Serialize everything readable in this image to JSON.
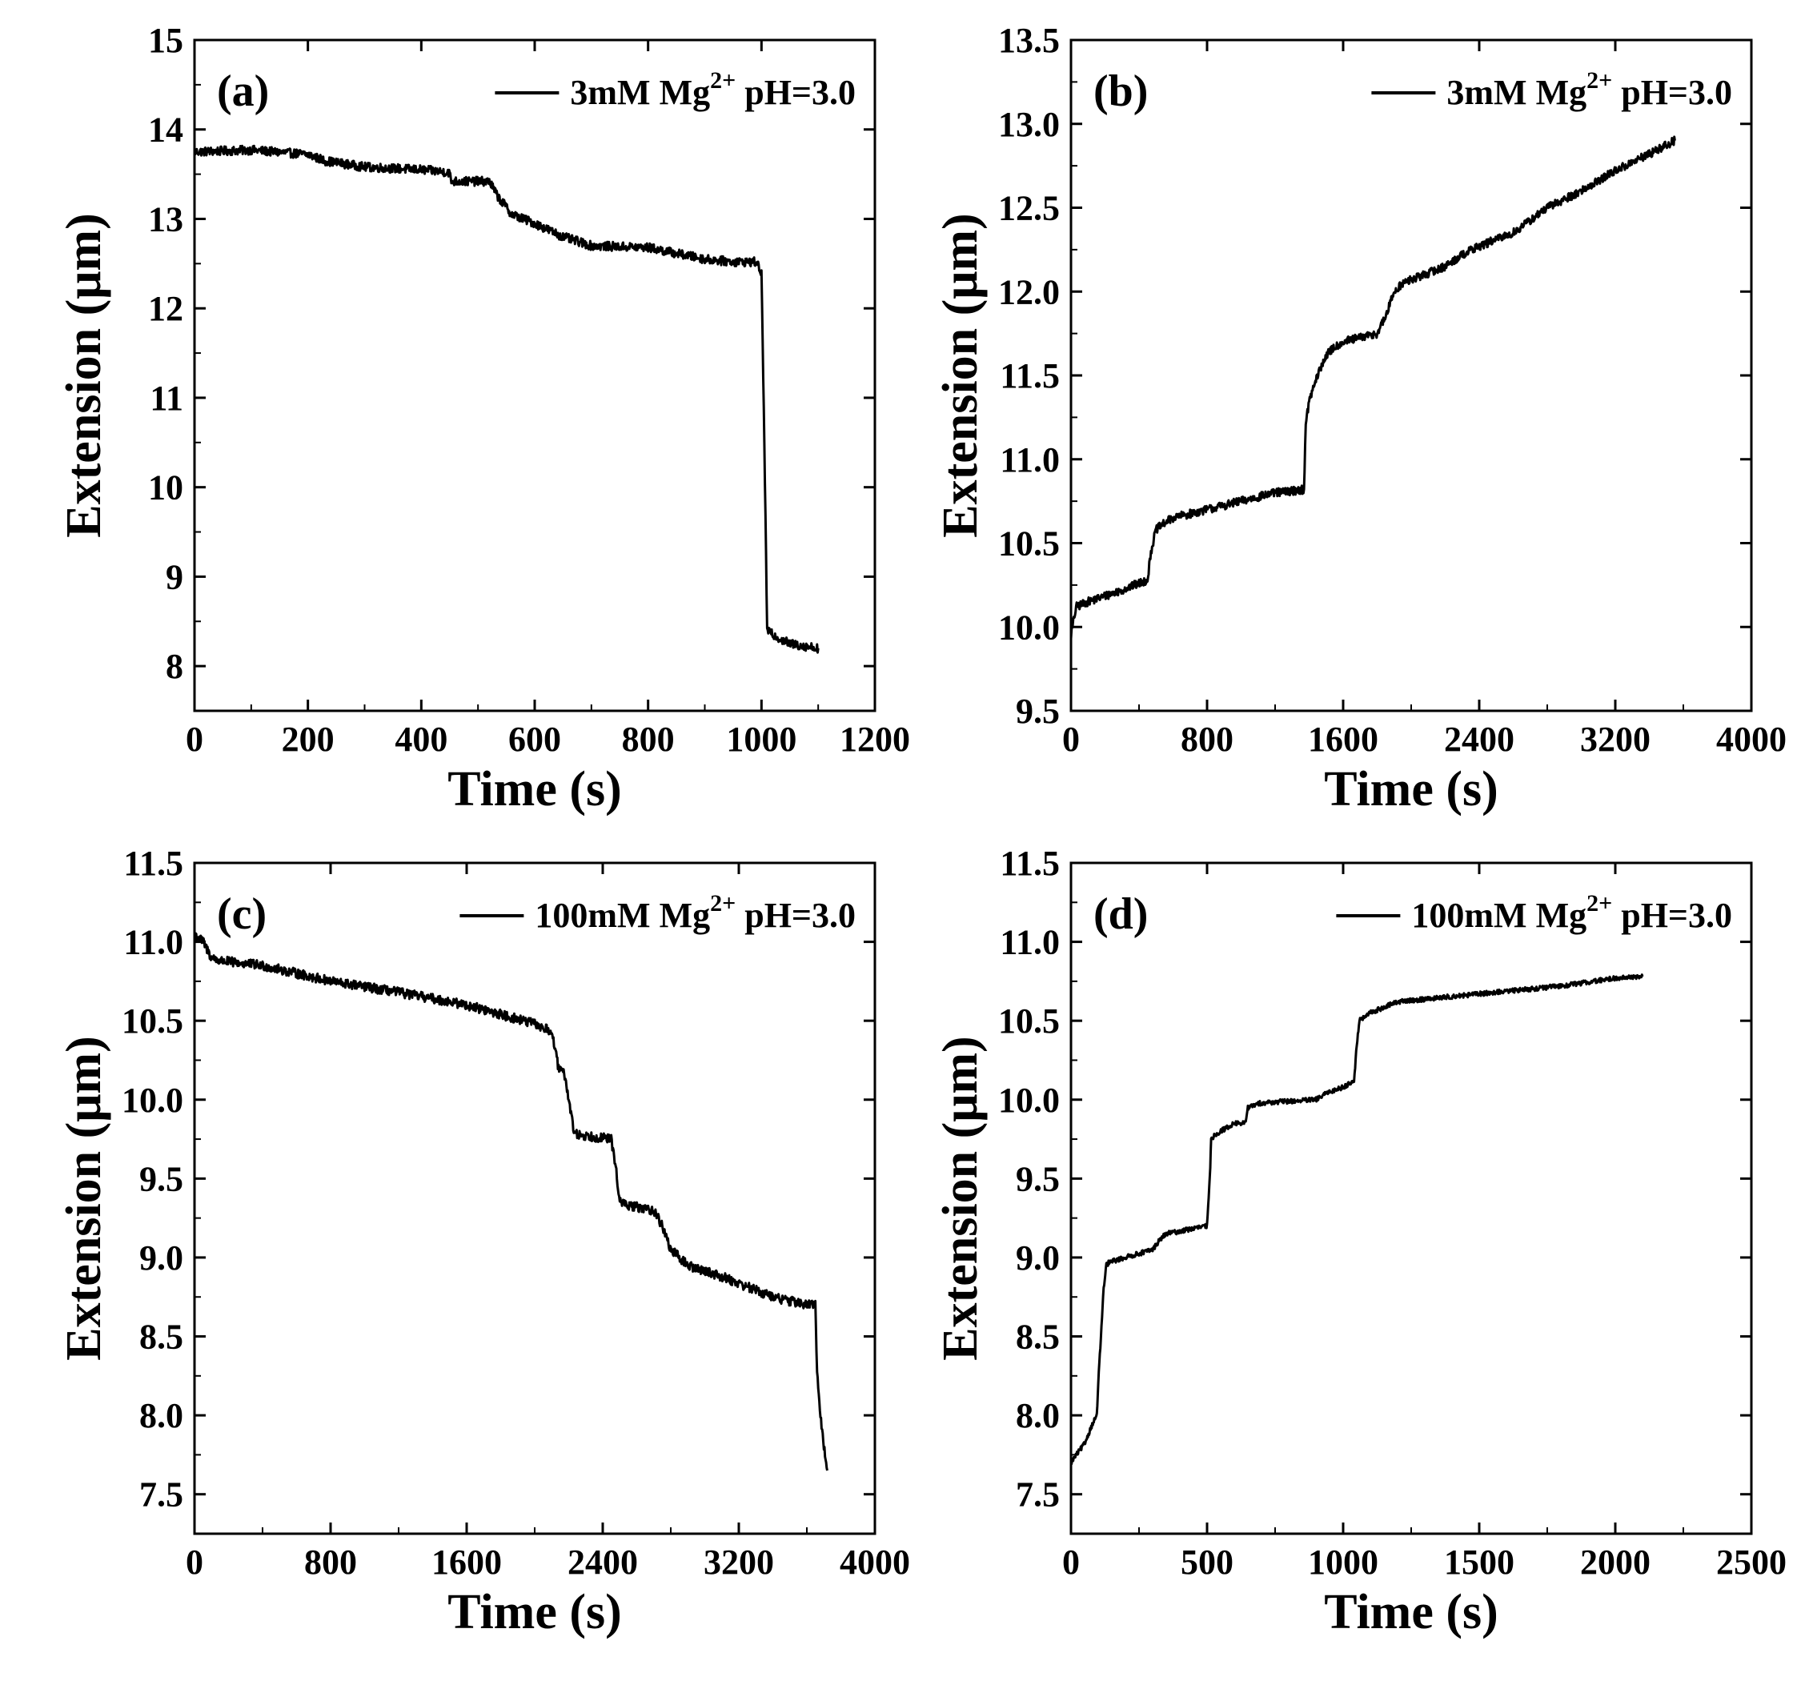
{
  "figure": {
    "line_color": "#000000",
    "background": "#ffffff"
  },
  "chart_data": [
    {
      "panel": "(a)",
      "type": "line",
      "legend": {
        "pre": "3mM Mg",
        "sup": "2+",
        "post": " pH=3.0",
        "placement": "top-right"
      },
      "xlabel": "Time (s)",
      "ylabel": "Extension (μm)",
      "xlim": [
        0,
        1200
      ],
      "ylim": [
        7.5,
        15
      ],
      "xticks": [
        0,
        200,
        400,
        600,
        800,
        1000,
        1200
      ],
      "yticks": [
        8,
        9,
        10,
        11,
        12,
        13,
        14,
        15
      ],
      "ytick_decimals": 0,
      "noise": 0.05,
      "series": [
        {
          "name": "3mM Mg2+ pH=3.0",
          "x": [
            0,
            100,
            200,
            230,
            300,
            400,
            450,
            452,
            520,
            535,
            560,
            600,
            650,
            700,
            800,
            900,
            950,
            990,
            1000,
            1005,
            1010,
            1020,
            1050,
            1100
          ],
          "y": [
            13.75,
            13.77,
            13.72,
            13.65,
            13.58,
            13.55,
            13.52,
            13.42,
            13.42,
            13.25,
            13.05,
            12.95,
            12.8,
            12.7,
            12.68,
            12.55,
            12.52,
            12.52,
            12.4,
            10.5,
            8.4,
            8.35,
            8.25,
            8.2
          ]
        }
      ]
    },
    {
      "panel": "(b)",
      "type": "line",
      "legend": {
        "pre": "3mM Mg",
        "sup": "2+",
        "post": " pH=3.0",
        "placement": "top-right"
      },
      "xlabel": "Time (s)",
      "ylabel": "Extension (μm)",
      "xlim": [
        0,
        4000
      ],
      "ylim": [
        9.5,
        13.5
      ],
      "xticks": [
        0,
        800,
        1600,
        2400,
        3200,
        4000
      ],
      "yticks": [
        9.5,
        10.0,
        10.5,
        11.0,
        11.5,
        12.0,
        12.5,
        13.0,
        13.5
      ],
      "ytick_decimals": 1,
      "noise": 0.025,
      "series": [
        {
          "name": "3mM Mg2+ pH=3.0",
          "x": [
            0,
            30,
            100,
            300,
            450,
            470,
            500,
            550,
            600,
            800,
            1000,
            1200,
            1370,
            1380,
            1400,
            1450,
            1500,
            1550,
            1600,
            1800,
            1850,
            1900,
            1950,
            2000,
            2200,
            2300,
            2400,
            2600,
            2800,
            3000,
            3200,
            3400,
            3550
          ],
          "y": [
            9.95,
            10.12,
            10.15,
            10.22,
            10.28,
            10.45,
            10.58,
            10.62,
            10.65,
            10.7,
            10.75,
            10.8,
            10.82,
            11.2,
            11.35,
            11.5,
            11.62,
            11.67,
            11.7,
            11.75,
            11.85,
            12.0,
            12.05,
            12.07,
            12.15,
            12.22,
            12.27,
            12.35,
            12.5,
            12.6,
            12.72,
            12.82,
            12.9
          ]
        }
      ]
    },
    {
      "panel": "(c)",
      "type": "line",
      "legend": {
        "pre": "100mM Mg",
        "sup": "2+",
        "post": " pH=3.0",
        "placement": "top-right"
      },
      "xlabel": "Time (s)",
      "ylabel": "Extension (μm)",
      "xlim": [
        0,
        4000
      ],
      "ylim": [
        7.25,
        11.5
      ],
      "xticks": [
        0,
        800,
        1600,
        2400,
        3200,
        4000
      ],
      "yticks": [
        7.5,
        8.0,
        8.5,
        9.0,
        9.5,
        10.0,
        10.5,
        11.0,
        11.5
      ],
      "ytick_decimals": 1,
      "noise": 0.03,
      "series": [
        {
          "name": "100mM Mg2+ pH=3.0",
          "x": [
            0,
            50,
            100,
            150,
            400,
            800,
            1200,
            1600,
            2000,
            2100,
            2140,
            2180,
            2200,
            2230,
            2250,
            2450,
            2480,
            2500,
            2550,
            2700,
            2750,
            2800,
            2850,
            2900,
            3100,
            3400,
            3600,
            3650,
            3660,
            3680,
            3700,
            3720
          ],
          "y": [
            11.05,
            11.0,
            10.9,
            10.88,
            10.85,
            10.75,
            10.68,
            10.6,
            10.48,
            10.43,
            10.2,
            10.15,
            10.0,
            9.8,
            9.78,
            9.75,
            9.55,
            9.35,
            9.33,
            9.3,
            9.2,
            9.05,
            9.0,
            8.95,
            8.88,
            8.75,
            8.7,
            8.7,
            8.3,
            8.0,
            7.8,
            7.65
          ]
        }
      ]
    },
    {
      "panel": "(d)",
      "type": "line",
      "legend": {
        "pre": "100mM Mg",
        "sup": "2+",
        "post": " pH=3.0",
        "placement": "top-right"
      },
      "xlabel": "Time (s)",
      "ylabel": "Extension (μm)",
      "xlim": [
        0,
        2500
      ],
      "ylim": [
        7.25,
        11.5
      ],
      "xticks": [
        0,
        500,
        1000,
        1500,
        2000,
        2500
      ],
      "yticks": [
        7.5,
        8.0,
        8.5,
        9.0,
        9.5,
        10.0,
        10.5,
        11.0,
        11.5
      ],
      "ytick_decimals": 1,
      "noise": 0.015,
      "series": [
        {
          "name": "100mM Mg2+ pH=3.0",
          "x": [
            0,
            20,
            50,
            80,
            95,
            100,
            110,
            120,
            130,
            140,
            200,
            300,
            330,
            350,
            500,
            510,
            515,
            530,
            600,
            640,
            650,
            700,
            900,
            950,
            1000,
            1040,
            1050,
            1060,
            1100,
            1200,
            1500,
            1800,
            2000,
            2100
          ],
          "y": [
            7.7,
            7.75,
            7.82,
            7.95,
            8.0,
            8.2,
            8.5,
            8.8,
            8.95,
            8.97,
            9.0,
            9.05,
            9.12,
            9.15,
            9.2,
            9.5,
            9.75,
            9.78,
            9.85,
            9.85,
            9.95,
            9.98,
            10.0,
            10.05,
            10.08,
            10.12,
            10.35,
            10.5,
            10.55,
            10.62,
            10.67,
            10.72,
            10.77,
            10.78
          ]
        }
      ]
    }
  ]
}
